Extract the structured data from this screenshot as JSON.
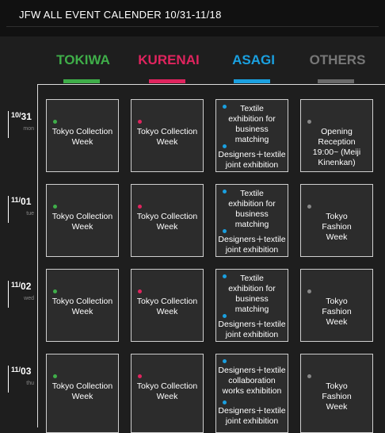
{
  "header": {
    "title": "JFW ALL EVENT CALENDER 10/31-11/18"
  },
  "columns": [
    {
      "label": "TOKIWA",
      "color": "#3fae49"
    },
    {
      "label": "KURENAI",
      "color": "#e0245e"
    },
    {
      "label": "ASAGI",
      "color": "#1aa0e0"
    },
    {
      "label": "OTHERS",
      "color": "#777777"
    }
  ],
  "days": [
    {
      "month": "10/",
      "day": "31",
      "dow": "mon",
      "tokiwa": "Tokyo Collection Week",
      "kurenai": "Tokyo Collection Week",
      "asagi": [
        "Textile exhibition for business matching",
        "Designers＋textile joint exhibition"
      ],
      "others": "Opening Reception 19:00~ (Meiji Kinenkan)"
    },
    {
      "month": "11/",
      "day": "01",
      "dow": "tue",
      "tokiwa": "Tokyo Collection Week",
      "kurenai": "Tokyo Collection Week",
      "asagi": [
        "Textile exhibition for business matching",
        "Designers＋textile joint exhibition"
      ],
      "others": "Tokyo Fashion Week"
    },
    {
      "month": "11/",
      "day": "02",
      "dow": "wed",
      "tokiwa": "Tokyo Collection Week",
      "kurenai": "Tokyo Collection Week",
      "asagi": [
        "Textile exhibition for business matching",
        "Designers＋textile joint exhibition"
      ],
      "others": "Tokyo Fashion Week"
    },
    {
      "month": "11/",
      "day": "03",
      "dow": "thu",
      "tokiwa": "Tokyo Collection Week",
      "kurenai": "Tokyo Collection Week",
      "asagi": [
        "Designers＋textile collaboration works exhibition",
        "Designers＋textile joint exhibition"
      ],
      "others": "Tokyo Fashion Week"
    }
  ]
}
